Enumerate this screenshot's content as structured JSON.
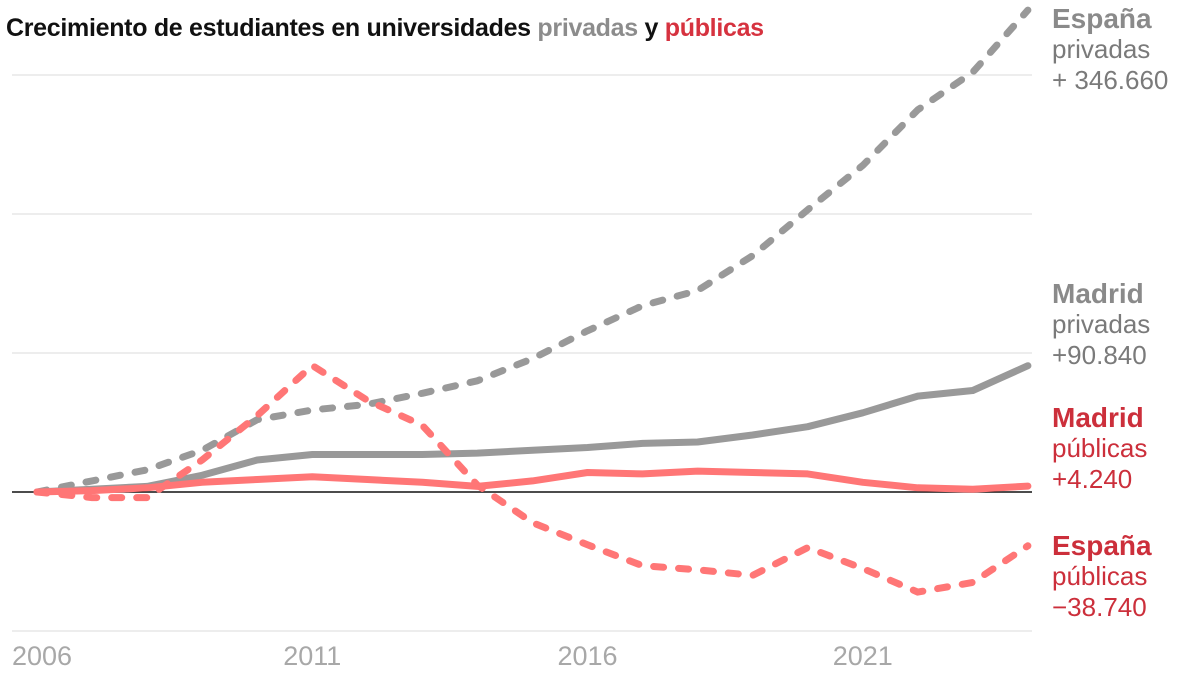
{
  "title": {
    "prefix": "Crecimiento de estudiantes en universidades ",
    "privadas": "privadas",
    "connector": " y ",
    "publicas": "públicas"
  },
  "colors": {
    "privadas": "#999999",
    "publicas": "#ff7676",
    "label_publicas": "#cc2f3b",
    "label_privadas": "#7a7a7a"
  },
  "labels": [
    {
      "region": "España",
      "type": "privadas",
      "value": "+ 346.660"
    },
    {
      "region": "Madrid",
      "type": "privadas",
      "value": "+90.840"
    },
    {
      "region": "Madrid",
      "type": "públicas",
      "value": "+4.240"
    },
    {
      "region": "España",
      "type": "públicas",
      "value": "−38.740"
    }
  ],
  "chart_data": {
    "type": "line",
    "title": "Crecimiento de estudiantes en universidades privadas y públicas",
    "x": [
      2006,
      2007,
      2008,
      2009,
      2010,
      2011,
      2012,
      2013,
      2014,
      2015,
      2016,
      2017,
      2018,
      2019,
      2020,
      2021,
      2022,
      2023,
      2024
    ],
    "x_ticks": [
      "2006",
      "2011",
      "2016",
      "2021"
    ],
    "y_gridlines": [
      -100000,
      0,
      100000,
      200000,
      300000
    ],
    "ylim": [
      -100000,
      346660
    ],
    "grid": true,
    "series": [
      {
        "name": "España privadas",
        "style": "dashed",
        "color": "#999999",
        "values": [
          0,
          8000,
          16000,
          30000,
          52000,
          59000,
          63000,
          71000,
          80000,
          96000,
          116000,
          134000,
          145000,
          170000,
          203000,
          235000,
          275000,
          302000,
          346660
        ]
      },
      {
        "name": "Madrid privadas",
        "style": "solid",
        "color": "#999999",
        "values": [
          0,
          2000,
          4000,
          12000,
          23000,
          27000,
          27000,
          27000,
          28000,
          30000,
          32000,
          35000,
          36000,
          41000,
          47000,
          57000,
          69000,
          73000,
          90840
        ]
      },
      {
        "name": "Madrid públicas",
        "style": "solid",
        "color": "#ff7676",
        "values": [
          0,
          1000,
          3000,
          7000,
          9000,
          11000,
          9000,
          7000,
          4000,
          8000,
          14000,
          13000,
          15000,
          14000,
          13000,
          7000,
          3000,
          2000,
          4240
        ]
      },
      {
        "name": "España públicas",
        "style": "dashed",
        "color": "#ff7676",
        "values": [
          0,
          -4000,
          -4000,
          23000,
          55000,
          91000,
          66000,
          48000,
          5000,
          -22000,
          -38000,
          -53000,
          -56000,
          -60000,
          -40000,
          -55000,
          -72000,
          -65000,
          -38740
        ]
      }
    ]
  }
}
